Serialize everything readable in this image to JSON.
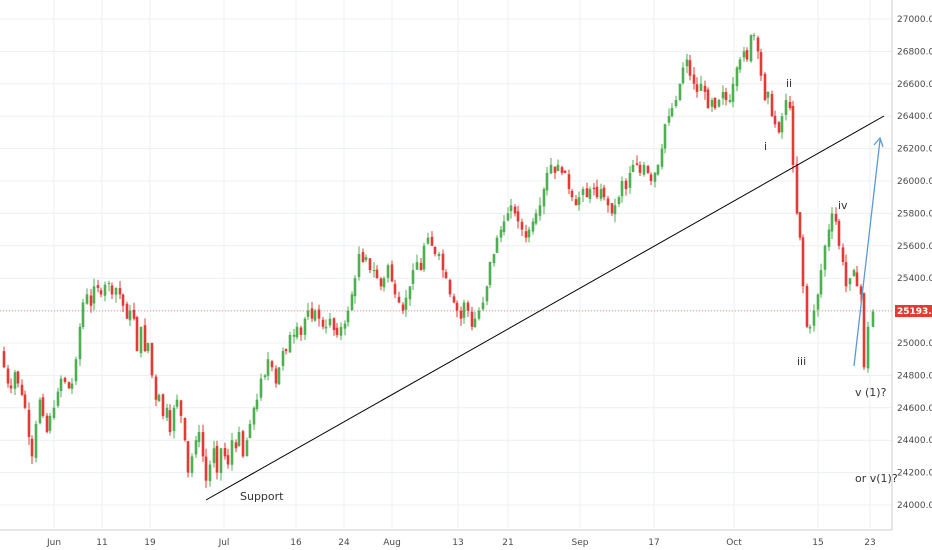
{
  "chart_data": {
    "type": "candlestick",
    "title": "",
    "ylim": [
      23900,
      27100
    ],
    "y_ticks": [
      24000,
      24200,
      24400,
      24600,
      24800,
      25000,
      25200,
      25400,
      25600,
      25800,
      26000,
      26200,
      26400,
      26600,
      26800,
      27000
    ],
    "y_tick_labels": [
      "24000.00",
      "24200.00",
      "24400.00",
      "24600.00",
      "24800.00",
      "25000.00",
      "25200.00",
      "25400.00",
      "25600.00",
      "25800.00",
      "26000.00",
      "26200.00",
      "26400.00",
      "26600.00",
      "26800.00",
      "27000.00"
    ],
    "x_tick_labels": [
      "Jun",
      "11",
      "19",
      "Jul",
      "16",
      "24",
      "Aug",
      "13",
      "21",
      "Sep",
      "17",
      "Oct",
      "15",
      "23"
    ],
    "grid": true,
    "current_price": 25193.84,
    "current_price_label": "25193.84",
    "colors": {
      "up": "#4caf50",
      "down": "#e53935",
      "price_line": "#e53935",
      "trendline": "#000000",
      "arrow": "#5b9bd5"
    },
    "close_path": [
      [
        0,
        24950
      ],
      [
        4,
        24850
      ],
      [
        8,
        24750
      ],
      [
        11,
        24720
      ],
      [
        15,
        24820
      ],
      [
        18,
        24750
      ],
      [
        22,
        24680
      ],
      [
        25,
        24600
      ],
      [
        29,
        24420
      ],
      [
        32,
        24300
      ],
      [
        36,
        24500
      ],
      [
        40,
        24650
      ],
      [
        43,
        24550
      ],
      [
        47,
        24450
      ],
      [
        50,
        24550
      ],
      [
        54,
        24600
      ],
      [
        58,
        24700
      ],
      [
        61,
        24780
      ],
      [
        65,
        24760
      ],
      [
        69,
        24720
      ],
      [
        72,
        24750
      ],
      [
        76,
        24900
      ],
      [
        80,
        25100
      ],
      [
        83,
        25250
      ],
      [
        87,
        25300
      ],
      [
        91,
        25230
      ],
      [
        94,
        25350
      ],
      [
        98,
        25340
      ],
      [
        101,
        25300
      ],
      [
        105,
        25360
      ],
      [
        109,
        25370
      ],
      [
        112,
        25300
      ],
      [
        116,
        25340
      ],
      [
        120,
        25300
      ],
      [
        123,
        25230
      ],
      [
        127,
        25150
      ],
      [
        130,
        25200
      ],
      [
        134,
        25150
      ],
      [
        137,
        24950
      ],
      [
        141,
        25100
      ],
      [
        145,
        24950
      ],
      [
        148,
        25000
      ],
      [
        152,
        24800
      ],
      [
        156,
        24650
      ],
      [
        159,
        24680
      ],
      [
        163,
        24550
      ],
      [
        167,
        24600
      ],
      [
        170,
        24450
      ],
      [
        174,
        24600
      ],
      [
        177,
        24650
      ],
      [
        181,
        24550
      ],
      [
        185,
        24400
      ],
      [
        188,
        24200
      ],
      [
        192,
        24300
      ],
      [
        196,
        24400
      ],
      [
        199,
        24450
      ],
      [
        203,
        24300
      ],
      [
        206,
        24150
      ],
      [
        210,
        24250
      ],
      [
        214,
        24350
      ],
      [
        217,
        24200
      ],
      [
        221,
        24350
      ],
      [
        225,
        24300
      ],
      [
        228,
        24250
      ],
      [
        232,
        24400
      ],
      [
        236,
        24350
      ],
      [
        239,
        24450
      ],
      [
        243,
        24300
      ],
      [
        247,
        24400
      ],
      [
        250,
        24500
      ],
      [
        254,
        24600
      ],
      [
        257,
        24650
      ],
      [
        261,
        24780
      ],
      [
        265,
        24800
      ],
      [
        268,
        24900
      ],
      [
        272,
        24850
      ],
      [
        276,
        24750
      ],
      [
        279,
        24850
      ],
      [
        283,
        24950
      ],
      [
        286,
        24950
      ],
      [
        290,
        25050
      ],
      [
        294,
        25050
      ],
      [
        297,
        25100
      ],
      [
        301,
        25050
      ],
      [
        305,
        25150
      ],
      [
        308,
        25200
      ],
      [
        312,
        25150
      ],
      [
        315,
        25200
      ],
      [
        319,
        25150
      ],
      [
        323,
        25100
      ],
      [
        326,
        25100
      ],
      [
        330,
        25150
      ],
      [
        334,
        25080
      ],
      [
        337,
        25050
      ],
      [
        341,
        25100
      ],
      [
        345,
        25120
      ],
      [
        348,
        25200
      ],
      [
        352,
        25300
      ],
      [
        355,
        25400
      ],
      [
        359,
        25550
      ],
      [
        363,
        25500
      ],
      [
        366,
        25530
      ],
      [
        370,
        25450
      ],
      [
        374,
        25450
      ],
      [
        377,
        25400
      ],
      [
        381,
        25350
      ],
      [
        384,
        25400
      ],
      [
        388,
        25480
      ],
      [
        392,
        25380
      ],
      [
        395,
        25300
      ],
      [
        399,
        25250
      ],
      [
        403,
        25200
      ],
      [
        406,
        25280
      ],
      [
        410,
        25350
      ],
      [
        413,
        25450
      ],
      [
        417,
        25500
      ],
      [
        421,
        25450
      ],
      [
        424,
        25600
      ],
      [
        428,
        25650
      ],
      [
        432,
        25600
      ],
      [
        435,
        25550
      ],
      [
        439,
        25550
      ],
      [
        443,
        25450
      ],
      [
        446,
        25400
      ],
      [
        450,
        25300
      ],
      [
        454,
        25250
      ],
      [
        457,
        25200
      ],
      [
        461,
        25150
      ],
      [
        464,
        25250
      ],
      [
        468,
        25200
      ],
      [
        472,
        25100
      ],
      [
        475,
        25150
      ],
      [
        479,
        25200
      ],
      [
        483,
        25250
      ],
      [
        487,
        25350
      ],
      [
        490,
        25500
      ],
      [
        494,
        25550
      ],
      [
        497,
        25650
      ],
      [
        501,
        25700
      ],
      [
        504,
        25750
      ],
      [
        508,
        25800
      ],
      [
        511,
        25850
      ],
      [
        515,
        25800
      ],
      [
        518,
        25750
      ],
      [
        522,
        25700
      ],
      [
        526,
        25650
      ],
      [
        529,
        25700
      ],
      [
        533,
        25750
      ],
      [
        536,
        25800
      ],
      [
        540,
        25850
      ],
      [
        544,
        25950
      ],
      [
        547,
        26050
      ],
      [
        551,
        26100
      ],
      [
        555,
        26050
      ],
      [
        558,
        26100
      ],
      [
        562,
        26050
      ],
      [
        565,
        26050
      ],
      [
        569,
        25950
      ],
      [
        572,
        25900
      ],
      [
        576,
        25850
      ],
      [
        579,
        25900
      ],
      [
        583,
        25950
      ],
      [
        587,
        25900
      ],
      [
        590,
        25950
      ],
      [
        594,
        25950
      ],
      [
        597,
        25900
      ],
      [
        601,
        25950
      ],
      [
        604,
        25900
      ],
      [
        608,
        25850
      ],
      [
        612,
        25800
      ],
      [
        615,
        25850
      ],
      [
        619,
        25900
      ],
      [
        622,
        26000
      ],
      [
        626,
        25950
      ],
      [
        630,
        26050
      ],
      [
        633,
        26100
      ],
      [
        637,
        26100
      ],
      [
        640,
        26050
      ],
      [
        644,
        26100
      ],
      [
        648,
        26050
      ],
      [
        651,
        26000
      ],
      [
        655,
        26050
      ],
      [
        658,
        26100
      ],
      [
        662,
        26200
      ],
      [
        665,
        26350
      ],
      [
        669,
        26400
      ],
      [
        672,
        26450
      ],
      [
        676,
        26500
      ],
      [
        680,
        26600
      ],
      [
        683,
        26700
      ],
      [
        687,
        26750
      ],
      [
        690,
        26650
      ],
      [
        694,
        26600
      ],
      [
        697,
        26550
      ],
      [
        701,
        26600
      ],
      [
        705,
        26550
      ],
      [
        708,
        26450
      ],
      [
        712,
        26500
      ],
      [
        715,
        26450
      ],
      [
        719,
        26500
      ],
      [
        723,
        26550
      ],
      [
        726,
        26500
      ],
      [
        730,
        26500
      ],
      [
        733,
        26600
      ],
      [
        737,
        26700
      ],
      [
        740,
        26750
      ],
      [
        744,
        26800
      ],
      [
        747,
        26750
      ],
      [
        751,
        26900
      ],
      [
        754,
        26900
      ],
      [
        758,
        26800
      ],
      [
        761,
        26650
      ],
      [
        765,
        26500
      ],
      [
        768,
        26550
      ],
      [
        772,
        26400
      ],
      [
        775,
        26350
      ],
      [
        779,
        26300
      ],
      [
        782,
        26400
      ],
      [
        786,
        26500
      ],
      [
        790,
        26450
      ],
      [
        793,
        26100
      ],
      [
        797,
        25800
      ],
      [
        800,
        25650
      ],
      [
        803,
        25350
      ],
      [
        807,
        25100
      ],
      [
        810,
        25100
      ],
      [
        814,
        25200
      ],
      [
        818,
        25300
      ],
      [
        821,
        25450
      ],
      [
        825,
        25600
      ],
      [
        829,
        25700
      ],
      [
        832,
        25800
      ],
      [
        836,
        25750
      ],
      [
        839,
        25600
      ],
      [
        843,
        25500
      ],
      [
        846,
        25350
      ],
      [
        850,
        25400
      ],
      [
        854,
        25450
      ],
      [
        857,
        25350
      ],
      [
        861,
        25300
      ],
      [
        864,
        24850
      ],
      [
        868,
        25100
      ],
      [
        873,
        25194
      ]
    ],
    "annotations": {
      "support": "Support",
      "wave_i": "i",
      "wave_ii": "ii",
      "wave_iii": "iii",
      "wave_iv": "iv",
      "wave_v": "v (1)?",
      "alt_v": "or v(1)?"
    }
  }
}
